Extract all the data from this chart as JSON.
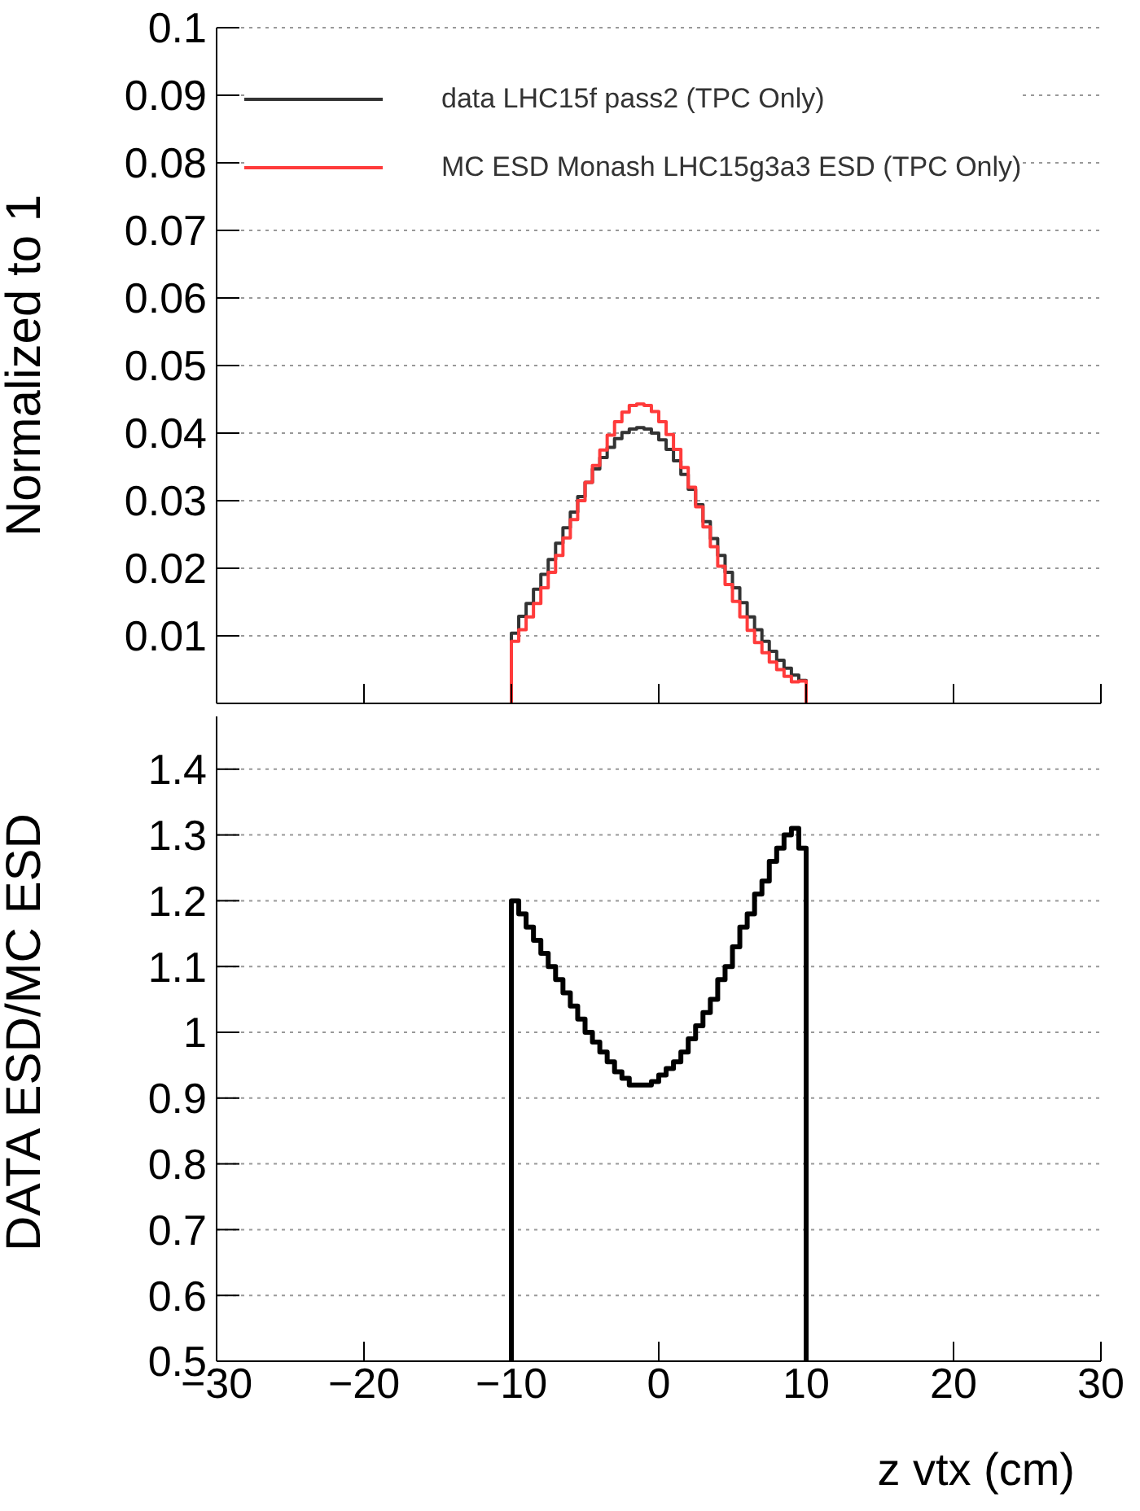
{
  "chart_data": [
    {
      "type": "histogram",
      "bins": [
        -10,
        -9.5,
        -9,
        -8.5,
        -8,
        -7.5,
        -7,
        -6.5,
        -6,
        -5.5,
        -5,
        -4.5,
        -4,
        -3.5,
        -3,
        -2.5,
        -2,
        -1.5,
        -1,
        -0.5,
        0,
        0.5,
        1,
        1.5,
        2,
        2.5,
        3,
        3.5,
        4,
        4.5,
        5,
        5.5,
        6,
        6.5,
        7,
        7.5,
        8,
        8.5,
        9,
        9.5,
        10
      ],
      "series": [
        {
          "name": "data LHC15f pass2 (TPC Only)",
          "color": "#333333",
          "values": [
            0.0104,
            0.0129,
            0.0148,
            0.0169,
            0.0191,
            0.0213,
            0.0237,
            0.026,
            0.0283,
            0.0306,
            0.0327,
            0.0347,
            0.0364,
            0.0379,
            0.0392,
            0.0401,
            0.0406,
            0.0408,
            0.0406,
            0.04,
            0.039,
            0.0376,
            0.0359,
            0.0339,
            0.0317,
            0.0294,
            0.0269,
            0.0244,
            0.0219,
            0.0194,
            0.0171,
            0.0149,
            0.0128,
            0.0109,
            0.0092,
            0.0077,
            0.0064,
            0.0052,
            0.0042,
            0.0034
          ]
        },
        {
          "name": "MC ESD Monash LHC15g3a3 ESD (TPC Only)",
          "color": "#ff3b3b",
          "values": [
            0.0092,
            0.0109,
            0.0128,
            0.0148,
            0.0171,
            0.0194,
            0.0219,
            0.0245,
            0.0272,
            0.03,
            0.0327,
            0.0352,
            0.0375,
            0.0397,
            0.0417,
            0.0431,
            0.0441,
            0.0443,
            0.0441,
            0.0432,
            0.0417,
            0.0398,
            0.0376,
            0.0349,
            0.032,
            0.0291,
            0.0261,
            0.0232,
            0.0203,
            0.0176,
            0.0151,
            0.0128,
            0.0108,
            0.009,
            0.0075,
            0.0061,
            0.005,
            0.004,
            0.0032,
            0.0033
          ]
        }
      ],
      "ylabel": "Normalized to 1",
      "xlim": [
        -30,
        30
      ],
      "xticks": [
        -30,
        -20,
        -10,
        0,
        10,
        20,
        30
      ],
      "ylim": [
        0,
        0.1
      ],
      "yticks": [
        0.01,
        0.02,
        0.03,
        0.04,
        0.05,
        0.06,
        0.07,
        0.08,
        0.09,
        0.1
      ],
      "tick_labels": "y",
      "grid": "y",
      "legend": "top left"
    },
    {
      "type": "histogram",
      "bins": [
        -10,
        -9.5,
        -9,
        -8.5,
        -8,
        -7.5,
        -7,
        -6.5,
        -6,
        -5.5,
        -5,
        -4.5,
        -4,
        -3.5,
        -3,
        -2.5,
        -2,
        -1.5,
        -1,
        -0.5,
        0,
        0.5,
        1,
        1.5,
        2,
        2.5,
        3,
        3.5,
        4,
        4.5,
        5,
        5.5,
        6,
        6.5,
        7,
        7.5,
        8,
        8.5,
        9,
        9.5,
        10
      ],
      "values": [
        1.2,
        1.18,
        1.16,
        1.14,
        1.12,
        1.1,
        1.08,
        1.06,
        1.04,
        1.02,
        1.0,
        0.985,
        0.97,
        0.955,
        0.94,
        0.93,
        0.92,
        0.92,
        0.92,
        0.925,
        0.935,
        0.945,
        0.955,
        0.97,
        0.99,
        1.01,
        1.03,
        1.05,
        1.08,
        1.1,
        1.13,
        1.16,
        1.18,
        1.21,
        1.23,
        1.26,
        1.28,
        1.3,
        1.31,
        1.28
      ],
      "color": "#000000",
      "xlabel": "z vtx (cm)",
      "ylabel": "DATA ESD/MC ESD",
      "xlim": [
        -30,
        30
      ],
      "xticks": [
        {
          "value": -30,
          "label": "−30"
        },
        {
          "value": -20,
          "label": "−20"
        },
        {
          "value": -10,
          "label": "−10"
        },
        0,
        10,
        20,
        30
      ],
      "ylim": [
        0.5,
        1.5
      ],
      "yticks": [
        0.5,
        0.6,
        0.7,
        0.8,
        0.9,
        1,
        1.1,
        1.2,
        1.3,
        1.4
      ],
      "grid": "y"
    }
  ]
}
